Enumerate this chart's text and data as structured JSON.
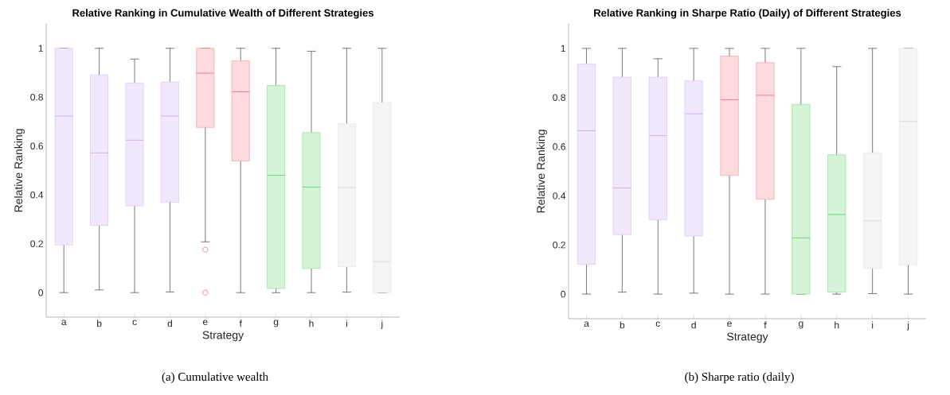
{
  "chart_data": [
    {
      "type": "box",
      "title": "Relative Ranking in Cumulative Wealth of Different Strategies",
      "xlabel": "Strategy",
      "ylabel": "Relative Ranking",
      "categories": [
        "a",
        "b",
        "c",
        "d",
        "e",
        "f",
        "g",
        "h",
        "i",
        "j"
      ],
      "colors": [
        "#c7a3f5",
        "#c7a3f5",
        "#c7a3f5",
        "#c7a3f5",
        "#f26b78",
        "#f26b78",
        "#55d160",
        "#55d160",
        "#d6d6d6",
        "#d6d6d6"
      ],
      "boxes": [
        {
          "low": 0,
          "q1": 0.195,
          "median": 0.723,
          "q3": 1,
          "high": 1
        },
        {
          "low": 0.011,
          "q1": 0.275,
          "median": 0.572,
          "q3": 0.891,
          "high": 1
        },
        {
          "low": 0,
          "q1": 0.355,
          "median": 0.624,
          "q3": 0.858,
          "high": 0.956
        },
        {
          "low": 0.003,
          "q1": 0.37,
          "median": 0.723,
          "q3": 0.862,
          "high": 1
        },
        {
          "low": 0.208,
          "q1": 0.676,
          "median": 0.898,
          "q3": 1,
          "high": 1,
          "outliers": [
            0.176,
            0
          ]
        },
        {
          "low": 0,
          "q1": 0.539,
          "median": 0.822,
          "q3": 0.949,
          "high": 1
        },
        {
          "low": 0,
          "q1": 0.017,
          "median": 0.48,
          "q3": 0.848,
          "high": 1
        },
        {
          "low": 0,
          "q1": 0.099,
          "median": 0.432,
          "q3": 0.655,
          "high": 0.988
        },
        {
          "low": 0.002,
          "q1": 0.106,
          "median": 0.43,
          "q3": 0.692,
          "high": 1
        },
        {
          "low": 0,
          "q1": 0,
          "median": 0.127,
          "q3": 0.778,
          "high": 1
        }
      ],
      "ylim": [
        -0.1,
        1.1
      ],
      "yticks": [
        0,
        0.2,
        0.4,
        0.6,
        0.8,
        1
      ],
      "annotations": [
        "(a) Cumulative wealth"
      ]
    },
    {
      "type": "box",
      "title": "Relative Ranking in Sharpe Ratio (Daily) of Different Strategies",
      "xlabel": "Strategy",
      "ylabel": "Relative Ranking",
      "categories": [
        "a",
        "b",
        "c",
        "d",
        "e",
        "f",
        "g",
        "h",
        "i",
        "j"
      ],
      "colors": [
        "#c7a3f5",
        "#c7a3f5",
        "#c7a3f5",
        "#c7a3f5",
        "#f26b78",
        "#f26b78",
        "#55d160",
        "#55d160",
        "#d6d6d6",
        "#d6d6d6"
      ],
      "boxes": [
        {
          "low": 0,
          "q1": 0.121,
          "median": 0.665,
          "q3": 0.937,
          "high": 1
        },
        {
          "low": 0.008,
          "q1": 0.242,
          "median": 0.432,
          "q3": 0.883,
          "high": 1
        },
        {
          "low": 0,
          "q1": 0.303,
          "median": 0.645,
          "q3": 0.883,
          "high": 0.958
        },
        {
          "low": 0.004,
          "q1": 0.236,
          "median": 0.734,
          "q3": 0.868,
          "high": 1
        },
        {
          "low": 0,
          "q1": 0.483,
          "median": 0.791,
          "q3": 0.969,
          "high": 1
        },
        {
          "low": 0,
          "q1": 0.386,
          "median": 0.809,
          "q3": 0.942,
          "high": 1
        },
        {
          "low": 0,
          "q1": 0,
          "median": 0.229,
          "q3": 0.772,
          "high": 1
        },
        {
          "low": 0,
          "q1": 0.008,
          "median": 0.324,
          "q3": 0.567,
          "high": 0.926
        },
        {
          "low": 0.002,
          "q1": 0.104,
          "median": 0.298,
          "q3": 0.576,
          "high": 1
        },
        {
          "low": 0,
          "q1": 0.119,
          "median": 0.703,
          "q3": 1,
          "high": 1
        }
      ],
      "ylim": [
        -0.1,
        1.1
      ],
      "yticks": [
        0,
        0.2,
        0.4,
        0.6,
        0.8,
        1
      ],
      "annotations": [
        "(b) Sharpe ratio (daily)"
      ]
    }
  ]
}
